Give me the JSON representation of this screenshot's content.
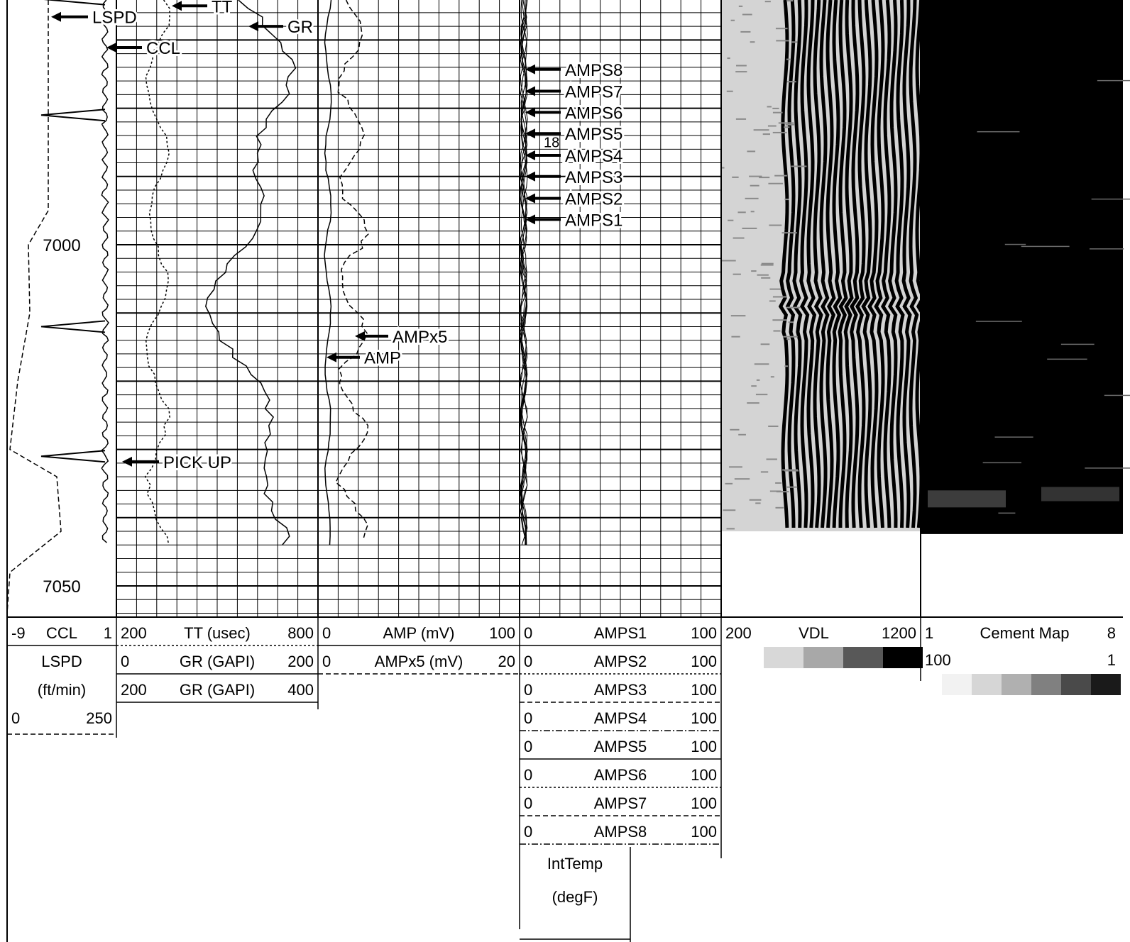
{
  "chart_data": {
    "type": "line",
    "title": "",
    "depth_axis": {
      "label": "",
      "ticks": [
        7000,
        7050
      ],
      "range_ft": [
        6965,
        7054
      ],
      "direction": "down"
    },
    "tracks": [
      {
        "name": "depth-track",
        "curves": [
          {
            "mnemonic": "CCL",
            "unit": "",
            "min": -9,
            "max": 1,
            "style": "solid",
            "header_label": "CCL",
            "header_min": "-9",
            "header_max": "1"
          },
          {
            "mnemonic": "LSPD",
            "unit": "(ft/min)",
            "min": 0,
            "max": 250,
            "style": "dashed",
            "header_label": "LSPD",
            "header_unit": "(ft/min)",
            "header_min": "0",
            "header_max": "250"
          }
        ]
      },
      {
        "name": "track-1",
        "curves": [
          {
            "mnemonic": "TT",
            "header_label": "TT (usec)",
            "min": 200,
            "max": 800,
            "style": "dotted",
            "header_min": "200",
            "header_max": "800"
          },
          {
            "mnemonic": "GR",
            "header_label": "GR (GAPI)",
            "min": 0,
            "max": 200,
            "style": "solid",
            "header_min": "0",
            "header_max": "200"
          },
          {
            "mnemonic": "GR",
            "header_label": "GR (GAPI)",
            "min": 200,
            "max": 400,
            "style": "solid",
            "header_min": "200",
            "header_max": "400"
          }
        ]
      },
      {
        "name": "track-2",
        "curves": [
          {
            "mnemonic": "AMP",
            "header_label": "AMP (mV)",
            "min": 0,
            "max": 100,
            "style": "solid",
            "header_min": "0",
            "header_max": "100"
          },
          {
            "mnemonic": "AMPx5",
            "header_label": "AMPx5 (mV)",
            "min": 0,
            "max": 20,
            "style": "dashed",
            "header_min": "0",
            "header_max": "20"
          }
        ]
      },
      {
        "name": "track-3",
        "curves": [
          {
            "mnemonic": "AMPS1",
            "min": 0,
            "max": 100,
            "style": "solid",
            "header_min": "0",
            "header_max": "100"
          },
          {
            "mnemonic": "AMPS2",
            "min": 0,
            "max": 100,
            "style": "dotted",
            "header_min": "0",
            "header_max": "100"
          },
          {
            "mnemonic": "AMPS3",
            "min": 0,
            "max": 100,
            "style": "dashed",
            "header_min": "0",
            "header_max": "100"
          },
          {
            "mnemonic": "AMPS4",
            "min": 0,
            "max": 100,
            "style": "dashdot",
            "header_min": "0",
            "header_max": "100"
          },
          {
            "mnemonic": "AMPS5",
            "min": 0,
            "max": 100,
            "style": "solid",
            "header_min": "0",
            "header_max": "100"
          },
          {
            "mnemonic": "AMPS6",
            "min": 0,
            "max": 100,
            "style": "dotted",
            "header_min": "0",
            "header_max": "100"
          },
          {
            "mnemonic": "AMPS7",
            "min": 0,
            "max": 100,
            "style": "dashed",
            "header_min": "0",
            "header_max": "100"
          },
          {
            "mnemonic": "AMPS8",
            "min": 0,
            "max": 100,
            "style": "dashdot",
            "header_min": "0",
            "header_max": "100"
          }
        ],
        "extra_header": {
          "label": "IntTemp",
          "unit": "(degF)"
        },
        "inline_value": "18"
      },
      {
        "name": "vdl-track",
        "image": "VDL",
        "header_min": "200",
        "header_max": "1200",
        "scale_colors": [
          "#d8d8d8",
          "#a8a8a8",
          "#585858",
          "#000000"
        ]
      },
      {
        "name": "cement-map-track",
        "image": "Cement Map",
        "header_min": "1",
        "header_max": "8",
        "scale_min": "100",
        "scale_max": "1",
        "scale_colors": [
          "#f2f2f2",
          "#d6d6d6",
          "#b0b0b0",
          "#808080",
          "#4a4a4a",
          "#1a1a1a"
        ]
      }
    ],
    "curve_tags": [
      {
        "label": "LSPD",
        "depth_ft": 6966.6
      },
      {
        "label": "TT",
        "depth_ft": 6965.0
      },
      {
        "label": "GR",
        "depth_ft": 6968.0
      },
      {
        "label": "CCL",
        "depth_ft": 6971.1
      },
      {
        "label": "AMPS8",
        "depth_ft": 6974.3
      },
      {
        "label": "AMPS7",
        "depth_ft": 6977.5
      },
      {
        "label": "AMPS6",
        "depth_ft": 6980.6
      },
      {
        "label": "AMPS5",
        "depth_ft": 6983.7
      },
      {
        "label": "AMPS4",
        "depth_ft": 6986.9
      },
      {
        "label": "AMPS3",
        "depth_ft": 6990.0
      },
      {
        "label": "AMPS2",
        "depth_ft": 6993.2
      },
      {
        "label": "AMPS1",
        "depth_ft": 6996.3
      },
      {
        "label": "AMPx5",
        "depth_ft": 7013.4
      },
      {
        "label": "AMP",
        "depth_ft": 7016.5
      },
      {
        "label": "PICK UP",
        "depth_ft": 7031.8
      }
    ],
    "curve_end_depth_ft": 7044
  },
  "colors": {
    "ink": "#000000",
    "paper": "#ffffff",
    "vdl_background": "#d4d4d4",
    "cement_map_fill": "#000000"
  }
}
